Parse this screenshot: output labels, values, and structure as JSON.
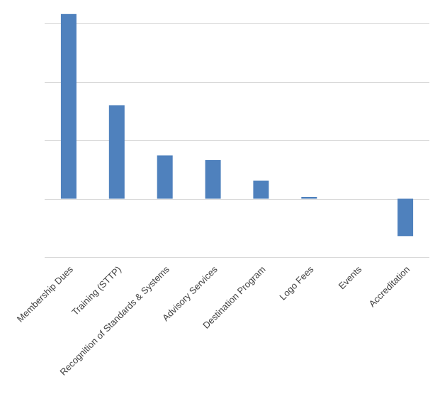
{
  "chart_data": {
    "type": "bar",
    "title": "",
    "xlabel": "",
    "ylabel": "",
    "categories": [
      "Membership Dues",
      "Training (STTP)",
      "Recognition of Standards & Systems",
      "Advisory Services",
      "Destination Program",
      "Logo Fees",
      "Events",
      "Accreditation"
    ],
    "values": [
      3.16,
      1.6,
      0.74,
      0.66,
      0.31,
      0.03,
      0.0,
      -0.64
    ],
    "ylim": [
      -1,
      3
    ],
    "yticks": [
      -1,
      0,
      1,
      2,
      3
    ],
    "y_tick_labels_shown": false,
    "grid": true,
    "legend": "none",
    "bar_color": "#4f81bd",
    "grid_color": "#d9d9d9",
    "axis_label_color": "#404040"
  }
}
